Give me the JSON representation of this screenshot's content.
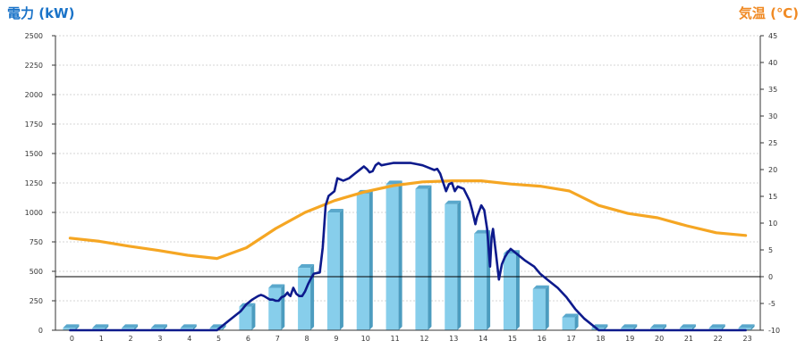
{
  "chart_data": {
    "type": "bar",
    "left_axis_title": "電力 (kW)",
    "right_axis_title": "気温 (℃)",
    "left_axis_color": "#1a73c8",
    "right_axis_color": "#f08a24",
    "categories": [
      "0",
      "1",
      "2",
      "3",
      "4",
      "5",
      "6",
      "7",
      "8",
      "9",
      "10",
      "11",
      "12",
      "13",
      "14",
      "15",
      "16",
      "17",
      "18",
      "19",
      "20",
      "21",
      "22",
      "23"
    ],
    "ylim_left": [
      0,
      2500
    ],
    "yticks_left": [
      "0",
      "250",
      "500",
      "750",
      "1000",
      "1250",
      "1500",
      "1750",
      "2000",
      "2250",
      "2500"
    ],
    "ylim_right": [
      -10,
      45
    ],
    "yticks_right": [
      "-10",
      "-5",
      "0",
      "5",
      "10",
      "15",
      "20",
      "25",
      "30",
      "35",
      "40",
      "45"
    ],
    "grid": true,
    "series": [
      {
        "kind": "bar",
        "axis": "left",
        "color": "#87ceeb",
        "values": [
          20,
          20,
          20,
          20,
          20,
          20,
          200,
          360,
          530,
          1000,
          1160,
          1240,
          1200,
          1070,
          820,
          650,
          350,
          110,
          20,
          20,
          20,
          20,
          20,
          20
        ]
      },
      {
        "kind": "line",
        "axis": "right",
        "color": "#f5a623",
        "values": [
          7.2,
          6.6,
          5.7,
          4.9,
          4.0,
          3.4,
          5.4,
          9.0,
          12.0,
          14.2,
          15.8,
          17.0,
          17.7,
          17.9,
          17.9,
          17.3,
          16.9,
          16.0,
          13.3,
          11.8,
          11.0,
          9.5,
          8.2,
          7.7
        ]
      },
      {
        "kind": "line",
        "axis": "left",
        "color": "#0d1a8c",
        "x": [
          0,
          5,
          5.4,
          5.8,
          6,
          6.2,
          6.4,
          6.5,
          6.6,
          6.8,
          6.9,
          7,
          7.1,
          7.2,
          7.3,
          7.4,
          7.45,
          7.5,
          7.6,
          7.7,
          7.8,
          7.9,
          8,
          8.1,
          8.2,
          8.3,
          8.5,
          8.6,
          8.7,
          8.8,
          9,
          9.1,
          9.3,
          9.5,
          9.7,
          9.9,
          10,
          10.1,
          10.2,
          10.3,
          10.4,
          10.5,
          10.6,
          10.8,
          11,
          11.3,
          11.6,
          11.8,
          12,
          12.2,
          12.4,
          12.5,
          12.6,
          12.8,
          12.9,
          13,
          13.1,
          13.2,
          13.4,
          13.6,
          13.7,
          13.8,
          13.85,
          14,
          14.1,
          14.2,
          14.3,
          14.35,
          14.4,
          14.5,
          14.6,
          14.7,
          14.8,
          14.9,
          15,
          15.2,
          15.5,
          15.8,
          16,
          16.3,
          16.6,
          16.9,
          17.2,
          17.5,
          18,
          23
        ],
        "values": [
          0,
          0,
          80,
          160,
          220,
          260,
          290,
          300,
          290,
          260,
          260,
          250,
          250,
          280,
          290,
          320,
          300,
          290,
          360,
          310,
          290,
          290,
          330,
          390,
          440,
          480,
          490,
          700,
          1060,
          1140,
          1180,
          1290,
          1270,
          1290,
          1330,
          1370,
          1390,
          1370,
          1340,
          1350,
          1400,
          1420,
          1400,
          1410,
          1420,
          1420,
          1420,
          1410,
          1400,
          1380,
          1360,
          1370,
          1330,
          1180,
          1240,
          1250,
          1180,
          1220,
          1200,
          1100,
          1010,
          900,
          960,
          1060,
          1020,
          860,
          540,
          790,
          860,
          650,
          430,
          560,
          620,
          660,
          690,
          650,
          590,
          540,
          480,
          420,
          360,
          280,
          180,
          100,
          0,
          0
        ]
      }
    ]
  }
}
